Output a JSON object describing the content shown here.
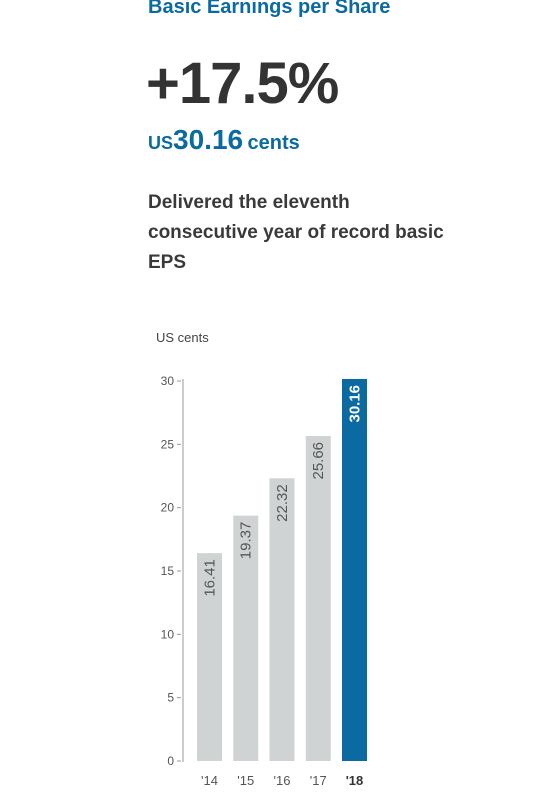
{
  "header": {
    "title": "Basic Earnings per Share",
    "growth": "+17.5%",
    "value_currency": "US",
    "value_number": "30.16",
    "value_unit": "cents",
    "description": "Delivered the eleventh consecutive year of record basic EPS"
  },
  "colors": {
    "accent": "#0a6aa1",
    "bar": "#d0d3d4",
    "highlight_bar": "#0a6aa1"
  },
  "chart_data": {
    "type": "bar",
    "ylabel": "US cents",
    "categories": [
      "'14",
      "'15",
      "'16",
      "'17",
      "'18"
    ],
    "values": [
      16.41,
      19.37,
      22.32,
      25.66,
      30.16
    ],
    "value_labels": [
      "16.41",
      "19.37",
      "22.32",
      "25.66",
      "30.16"
    ],
    "highlight_index": 4,
    "ylim": [
      0,
      30
    ],
    "yticks": [
      0,
      5,
      10,
      15,
      20,
      25,
      30
    ],
    "grid": false,
    "legend": false
  }
}
